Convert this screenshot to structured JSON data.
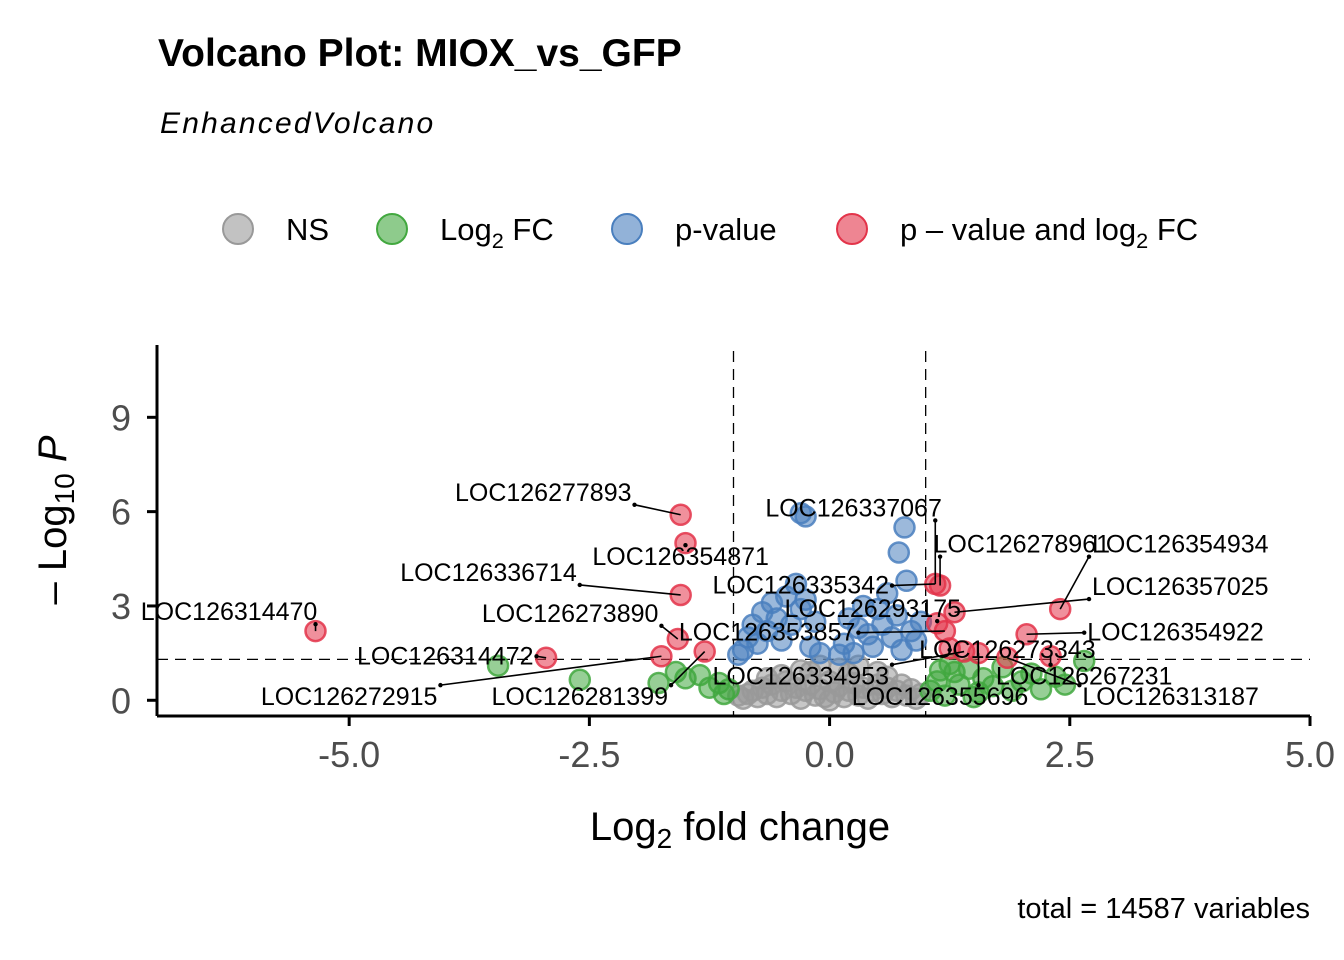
{
  "chart_data": {
    "type": "scatter",
    "title": "Volcano Plot: MIOX_vs_GFP",
    "subtitle": "EnhancedVolcano",
    "xlabel": {
      "main": "Log",
      "sub": "2",
      "rest": " fold change"
    },
    "ylabel": {
      "minus": "– ",
      "main": "Log",
      "sub": "10",
      "rest": " P"
    },
    "caption": "total = 14587 variables",
    "xlim": [
      -7.0,
      5.0
    ],
    "ylim": [
      -0.5,
      11.3
    ],
    "x_ticks": [
      {
        "value": -5.0,
        "label": "-5.0"
      },
      {
        "value": -2.5,
        "label": "-2.5"
      },
      {
        "value": 0.0,
        "label": "0.0"
      },
      {
        "value": 2.5,
        "label": "2.5"
      },
      {
        "value": 5.0,
        "label": "5.0"
      }
    ],
    "y_ticks": [
      {
        "value": 0,
        "label": "0"
      },
      {
        "value": 3,
        "label": "3"
      },
      {
        "value": 6,
        "label": "6"
      },
      {
        "value": 9,
        "label": "9"
      }
    ],
    "fc_cutoff": [
      -1.0,
      1.0
    ],
    "p_cutoff_log10": 1.3,
    "legend": [
      {
        "key": "ns",
        "color": "#999999",
        "main": "NS",
        "sub": "",
        "rest": ""
      },
      {
        "key": "fc",
        "color": "#42a83f",
        "main": "Log",
        "sub": "2",
        "rest": " FC"
      },
      {
        "key": "p",
        "color": "#4a7fbe",
        "main": "p-value",
        "sub": "",
        "rest": ""
      },
      {
        "key": "both",
        "color": "#e3344a",
        "main": "p – value and log",
        "sub": "2",
        "rest": " FC"
      }
    ],
    "series": [
      {
        "name": "NS",
        "key": "ns",
        "points": [
          [
            -0.9,
            0.05
          ],
          [
            -0.85,
            0.2
          ],
          [
            -0.8,
            0.3
          ],
          [
            -0.75,
            0.1
          ],
          [
            -0.7,
            0.4
          ],
          [
            -0.65,
            0.2
          ],
          [
            -0.6,
            0.5
          ],
          [
            -0.55,
            0.1
          ],
          [
            -0.5,
            0.3
          ],
          [
            -0.45,
            0.6
          ],
          [
            -0.4,
            0.2
          ],
          [
            -0.35,
            0.4
          ],
          [
            -0.3,
            0.05
          ],
          [
            -0.25,
            0.3
          ],
          [
            -0.2,
            0.5
          ],
          [
            -0.15,
            0.15
          ],
          [
            -0.1,
            0.35
          ],
          [
            -0.05,
            0.1
          ],
          [
            0.0,
            0.0
          ],
          [
            0.05,
            0.25
          ],
          [
            0.1,
            0.45
          ],
          [
            0.15,
            0.1
          ],
          [
            0.2,
            0.3
          ],
          [
            0.25,
            0.55
          ],
          [
            0.3,
            0.15
          ],
          [
            0.35,
            0.4
          ],
          [
            0.4,
            0.05
          ],
          [
            0.45,
            0.3
          ],
          [
            0.5,
            0.5
          ],
          [
            0.55,
            0.2
          ],
          [
            0.6,
            0.4
          ],
          [
            0.65,
            0.1
          ],
          [
            0.7,
            0.3
          ],
          [
            0.75,
            0.5
          ],
          [
            0.8,
            0.15
          ],
          [
            0.85,
            0.35
          ],
          [
            0.9,
            0.05
          ],
          [
            0.95,
            0.2
          ],
          [
            -0.95,
            0.15
          ],
          [
            0.0,
            0.6
          ],
          [
            -0.2,
            0.9
          ],
          [
            0.2,
            0.85
          ],
          [
            -0.5,
            0.8
          ],
          [
            0.5,
            0.9
          ],
          [
            0.1,
            1.0
          ],
          [
            -0.1,
            1.1
          ],
          [
            0.3,
            1.1
          ],
          [
            -0.3,
            0.95
          ],
          [
            0.6,
            0.75
          ],
          [
            -0.65,
            0.7
          ]
        ]
      },
      {
        "name": "Log2 FC",
        "key": "fc",
        "points": [
          [
            -3.45,
            1.1
          ],
          [
            -2.6,
            0.65
          ],
          [
            -1.78,
            0.55
          ],
          [
            -1.6,
            0.9
          ],
          [
            -1.5,
            0.7
          ],
          [
            -1.25,
            0.4
          ],
          [
            -1.15,
            0.55
          ],
          [
            -1.05,
            0.35
          ],
          [
            -1.1,
            0.2
          ],
          [
            -1.35,
            0.8
          ],
          [
            1.05,
            0.3
          ],
          [
            1.12,
            0.6
          ],
          [
            1.2,
            0.15
          ],
          [
            1.3,
            0.9
          ],
          [
            1.35,
            0.5
          ],
          [
            1.45,
            1.0
          ],
          [
            1.55,
            0.25
          ],
          [
            1.6,
            0.7
          ],
          [
            1.7,
            0.45
          ],
          [
            1.8,
            1.05
          ],
          [
            1.9,
            0.3
          ],
          [
            2.0,
            0.6
          ],
          [
            2.1,
            0.85
          ],
          [
            2.2,
            0.35
          ],
          [
            2.35,
            0.75
          ],
          [
            2.45,
            0.5
          ],
          [
            2.65,
            1.25
          ],
          [
            1.25,
            1.15
          ],
          [
            1.5,
            0.1
          ],
          [
            1.15,
            0.95
          ]
        ]
      },
      {
        "name": "p-value",
        "key": "p",
        "points": [
          [
            -0.3,
            5.95
          ],
          [
            -0.25,
            5.85
          ],
          [
            0.78,
            5.5
          ],
          [
            0.72,
            4.7
          ],
          [
            -0.9,
            1.6
          ],
          [
            -0.85,
            2.0
          ],
          [
            -0.8,
            2.4
          ],
          [
            -0.75,
            1.8
          ],
          [
            -0.7,
            2.8
          ],
          [
            -0.65,
            2.2
          ],
          [
            -0.6,
            3.1
          ],
          [
            -0.55,
            2.6
          ],
          [
            -0.5,
            1.9
          ],
          [
            -0.45,
            3.3
          ],
          [
            -0.4,
            2.4
          ],
          [
            -0.35,
            3.7
          ],
          [
            -0.3,
            2.9
          ],
          [
            -0.25,
            3.2
          ],
          [
            -0.2,
            1.7
          ],
          [
            -0.15,
            2.5
          ],
          [
            0.15,
            1.8
          ],
          [
            0.2,
            2.6
          ],
          [
            0.25,
            1.5
          ],
          [
            0.3,
            2.3
          ],
          [
            0.35,
            3.0
          ],
          [
            0.4,
            2.1
          ],
          [
            0.45,
            1.7
          ],
          [
            0.5,
            2.9
          ],
          [
            0.55,
            2.4
          ],
          [
            0.6,
            3.4
          ],
          [
            0.65,
            2.0
          ],
          [
            0.7,
            2.7
          ],
          [
            0.75,
            1.6
          ],
          [
            0.8,
            3.8
          ],
          [
            0.85,
            2.2
          ],
          [
            0.9,
            1.9
          ],
          [
            0.95,
            2.5
          ],
          [
            -0.95,
            1.45
          ],
          [
            0.1,
            1.45
          ],
          [
            -0.1,
            1.5
          ]
        ]
      },
      {
        "name": "p-value and log2 FC",
        "key": "both",
        "points": [
          [
            -5.35,
            2.2
          ],
          [
            -2.95,
            1.35
          ],
          [
            -1.55,
            5.9
          ],
          [
            -1.5,
            5.0
          ],
          [
            -1.55,
            3.35
          ],
          [
            -1.75,
            1.4
          ],
          [
            -1.3,
            1.55
          ],
          [
            -1.58,
            1.95
          ],
          [
            1.1,
            3.7
          ],
          [
            1.15,
            3.65
          ],
          [
            1.3,
            2.8
          ],
          [
            1.12,
            2.45
          ],
          [
            1.2,
            2.2
          ],
          [
            1.25,
            1.65
          ],
          [
            1.4,
            1.55
          ],
          [
            1.55,
            1.5
          ],
          [
            1.85,
            1.35
          ],
          [
            2.05,
            2.1
          ],
          [
            2.3,
            1.4
          ],
          [
            2.4,
            2.9
          ]
        ]
      }
    ],
    "labels": [
      {
        "text": "LOC126277893",
        "x": -1.55,
        "y": 5.9,
        "lx": -2.98,
        "ly": 6.6
      },
      {
        "text": "LOC126337067",
        "x": 1.1,
        "y": 3.7,
        "lx": 0.25,
        "ly": 6.1
      },
      {
        "text": "LOC126354871",
        "x": -1.5,
        "y": 5.0,
        "lx": -1.55,
        "ly": 4.55
      },
      {
        "text": "LOC126278961",
        "x": 1.15,
        "y": 3.65,
        "lx": 2.0,
        "ly": 4.95
      },
      {
        "text": "LOC126354934",
        "x": 2.4,
        "y": 2.9,
        "lx": 3.65,
        "ly": 4.95
      },
      {
        "text": "LOC126336714",
        "x": -1.55,
        "y": 3.35,
        "lx": -3.55,
        "ly": 4.05
      },
      {
        "text": "LOC126335342",
        "x": 1.1,
        "y": 3.7,
        "lx": -0.3,
        "ly": 3.65
      },
      {
        "text": "LOC126357025",
        "x": 1.3,
        "y": 2.8,
        "lx": 3.65,
        "ly": 3.6
      },
      {
        "text": "LOC126314470",
        "x": -5.35,
        "y": 2.2,
        "lx": -6.25,
        "ly": 2.8
      },
      {
        "text": "LOC126273890",
        "x": -1.58,
        "y": 1.95,
        "lx": -2.7,
        "ly": 2.75
      },
      {
        "text": "LOC126293175",
        "x": 1.12,
        "y": 2.45,
        "lx": 0.45,
        "ly": 2.9
      },
      {
        "text": "LOC126353857",
        "x": 1.2,
        "y": 2.2,
        "lx": -0.65,
        "ly": 2.15
      },
      {
        "text": "LOC126354922",
        "x": 2.05,
        "y": 2.1,
        "lx": 3.6,
        "ly": 2.15
      },
      {
        "text": "LOC126273343",
        "x": 1.25,
        "y": 1.65,
        "lx": 1.85,
        "ly": 1.6
      },
      {
        "text": "LOC126314472",
        "x": -2.95,
        "y": 1.35,
        "lx": -4.0,
        "ly": 1.4
      },
      {
        "text": "LOC126267231",
        "x": 2.3,
        "y": 1.4,
        "lx": 2.65,
        "ly": 0.75
      },
      {
        "text": "LOC126334953",
        "x": 1.4,
        "y": 1.55,
        "lx": -0.3,
        "ly": 0.75
      },
      {
        "text": "LOC126272915",
        "x": -1.75,
        "y": 1.4,
        "lx": -5.0,
        "ly": 0.1
      },
      {
        "text": "LOC126281399",
        "x": -1.3,
        "y": 1.55,
        "lx": -2.6,
        "ly": 0.1
      },
      {
        "text": "LOC126355696",
        "x": 1.55,
        "y": 1.5,
        "lx": 1.15,
        "ly": 0.1
      },
      {
        "text": "LOC126313187",
        "x": 1.85,
        "y": 1.35,
        "lx": 3.55,
        "ly": 0.1
      }
    ]
  }
}
